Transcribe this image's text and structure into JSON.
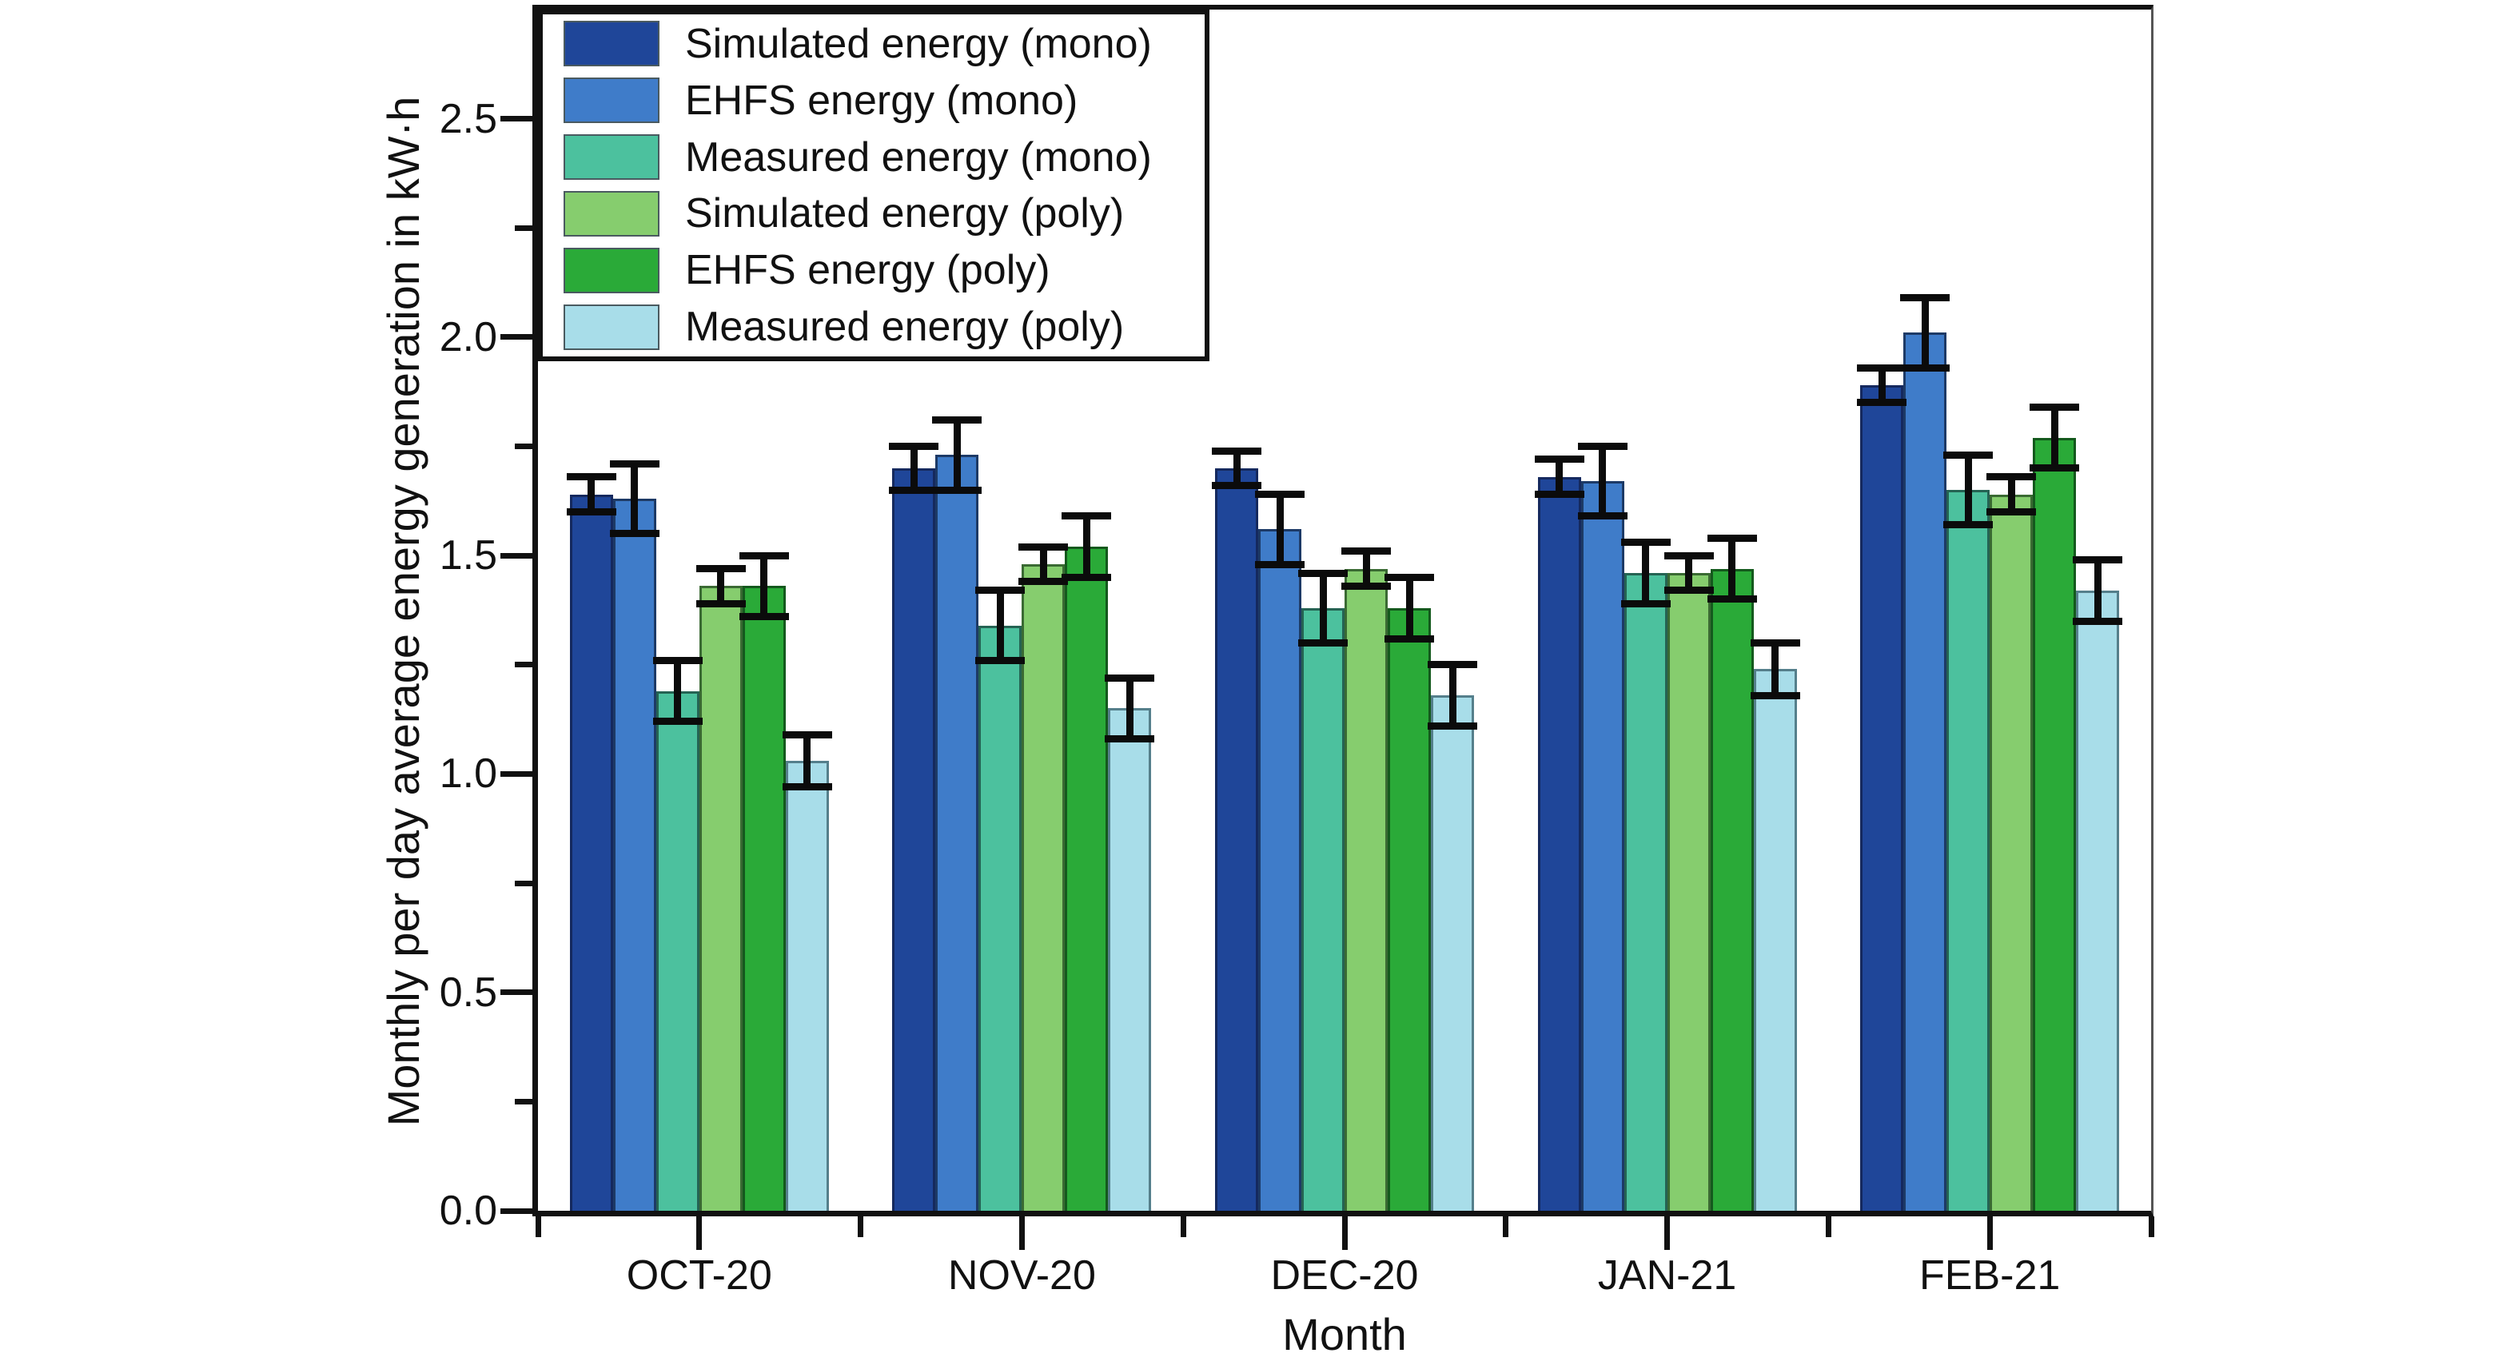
{
  "chart_data": {
    "type": "bar",
    "title": "",
    "xlabel": "Month",
    "ylabel": "Monthly per day average energy generation in kW·h",
    "categories": [
      "OCT-20",
      "NOV-20",
      "DEC-20",
      "JAN-21",
      "FEB-21"
    ],
    "series": [
      {
        "name": "Simulated energy (mono)",
        "color": "#1f4699",
        "edge_color": "#15295e",
        "values": [
          1.64,
          1.7,
          1.7,
          1.68,
          1.89
        ],
        "errors": [
          0.04,
          0.05,
          0.04,
          0.04,
          0.04
        ]
      },
      {
        "name": "EHFS energy (mono)",
        "color": "#3f7cc9",
        "edge_color": "#1d3a66",
        "values": [
          1.63,
          1.73,
          1.56,
          1.67,
          2.01
        ],
        "errors": [
          0.08,
          0.08,
          0.08,
          0.08,
          0.08
        ]
      },
      {
        "name": "Measured energy (mono)",
        "color": "#4cc19e",
        "edge_color": "#256353",
        "values": [
          1.19,
          1.34,
          1.38,
          1.46,
          1.65
        ],
        "errors": [
          0.07,
          0.08,
          0.08,
          0.07,
          0.08
        ]
      },
      {
        "name": "Simulated energy (poly)",
        "color": "#86cd6e",
        "edge_color": "#3a6a33",
        "values": [
          1.43,
          1.48,
          1.47,
          1.46,
          1.64
        ],
        "errors": [
          0.04,
          0.04,
          0.04,
          0.04,
          0.04
        ]
      },
      {
        "name": "EHFS energy (poly)",
        "color": "#2aaa38",
        "edge_color": "#14591d",
        "values": [
          1.43,
          1.52,
          1.38,
          1.47,
          1.77
        ],
        "errors": [
          0.07,
          0.07,
          0.07,
          0.07,
          0.07
        ]
      },
      {
        "name": "Measured energy (poly)",
        "color": "#a8dde9",
        "edge_color": "#557f8b",
        "values": [
          1.03,
          1.15,
          1.18,
          1.24,
          1.42
        ],
        "errors": [
          0.06,
          0.07,
          0.07,
          0.06,
          0.07
        ]
      }
    ],
    "ylim": [
      0,
      2.75
    ],
    "yticks": {
      "major_values": [
        0,
        0.5,
        1,
        1.5,
        2,
        2.5
      ],
      "major_labels": [
        "0.0",
        "0.5",
        "1.0",
        "1.5",
        "2.0",
        "2.5"
      ],
      "minor_step": 0.25
    },
    "legend_position": "top-left",
    "grid": false,
    "error_bars": true,
    "axis_color": "#111111"
  }
}
